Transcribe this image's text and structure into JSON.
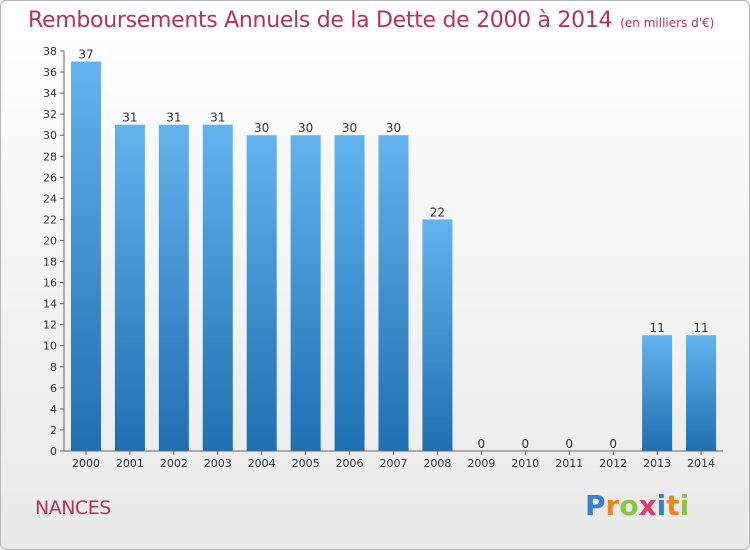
{
  "chart_data": {
    "type": "bar",
    "title": "Remboursements Annuels de la Dette de 2000 à 2014",
    "subtitle": "(en milliers d'€)",
    "categories": [
      "2000",
      "2001",
      "2002",
      "2003",
      "2004",
      "2005",
      "2006",
      "2007",
      "2008",
      "2009",
      "2010",
      "2011",
      "2012",
      "2013",
      "2014"
    ],
    "values": [
      37,
      31,
      31,
      31,
      30,
      30,
      30,
      30,
      22,
      0,
      0,
      0,
      0,
      11,
      11
    ],
    "xlabel": "",
    "ylabel": "",
    "ylim": [
      0,
      38
    ],
    "yticks": [
      0,
      2,
      4,
      6,
      8,
      10,
      12,
      14,
      16,
      18,
      20,
      22,
      24,
      26,
      28,
      30,
      32,
      34,
      36,
      38
    ],
    "grid": false,
    "bar_color": "#3d8fd6"
  },
  "footer": {
    "commune": "NANCES",
    "logo_letters": [
      "P",
      "r",
      "o",
      "x",
      "i",
      "t",
      "i"
    ],
    "logo_colors": [
      "#3a7fd0",
      "#f0851f",
      "#8fc23e",
      "#e23a6e",
      "#3a7fd0",
      "#f0851f",
      "#8fc23e"
    ]
  }
}
